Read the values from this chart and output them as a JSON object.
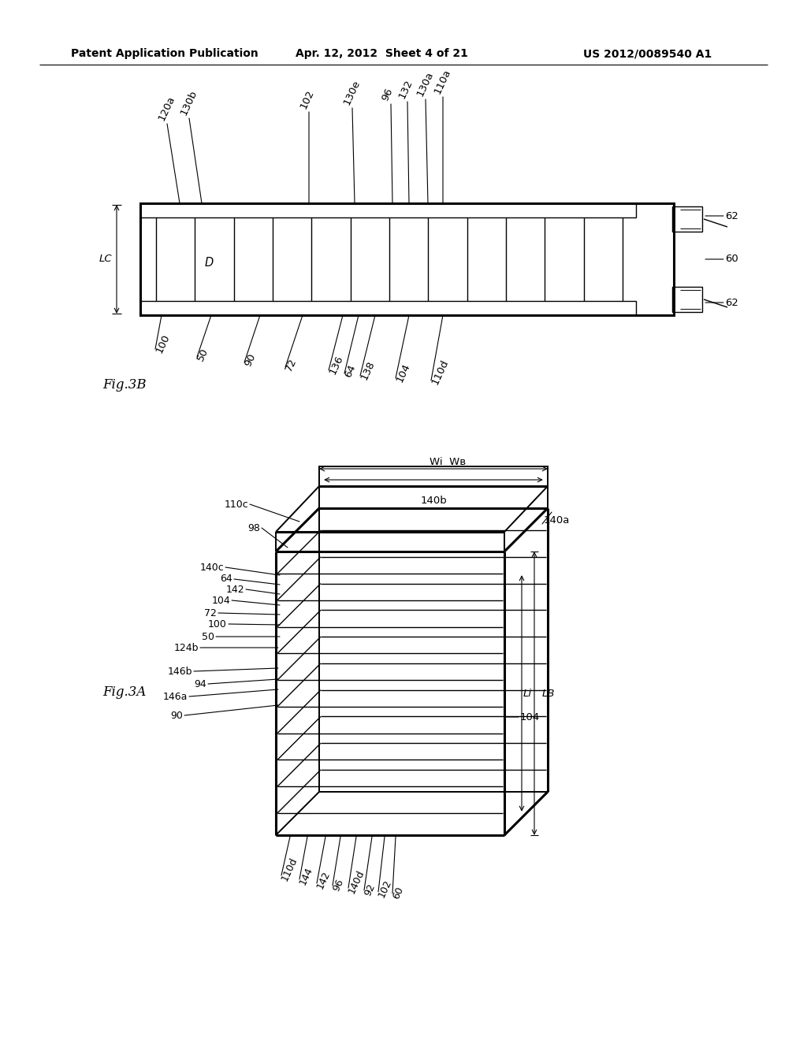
{
  "bg_color": "#ffffff",
  "line_color": "#000000",
  "header_text": "Patent Application Publication",
  "header_date": "Apr. 12, 2012  Sheet 4 of 21",
  "header_patent": "US 2012/0089540 A1"
}
